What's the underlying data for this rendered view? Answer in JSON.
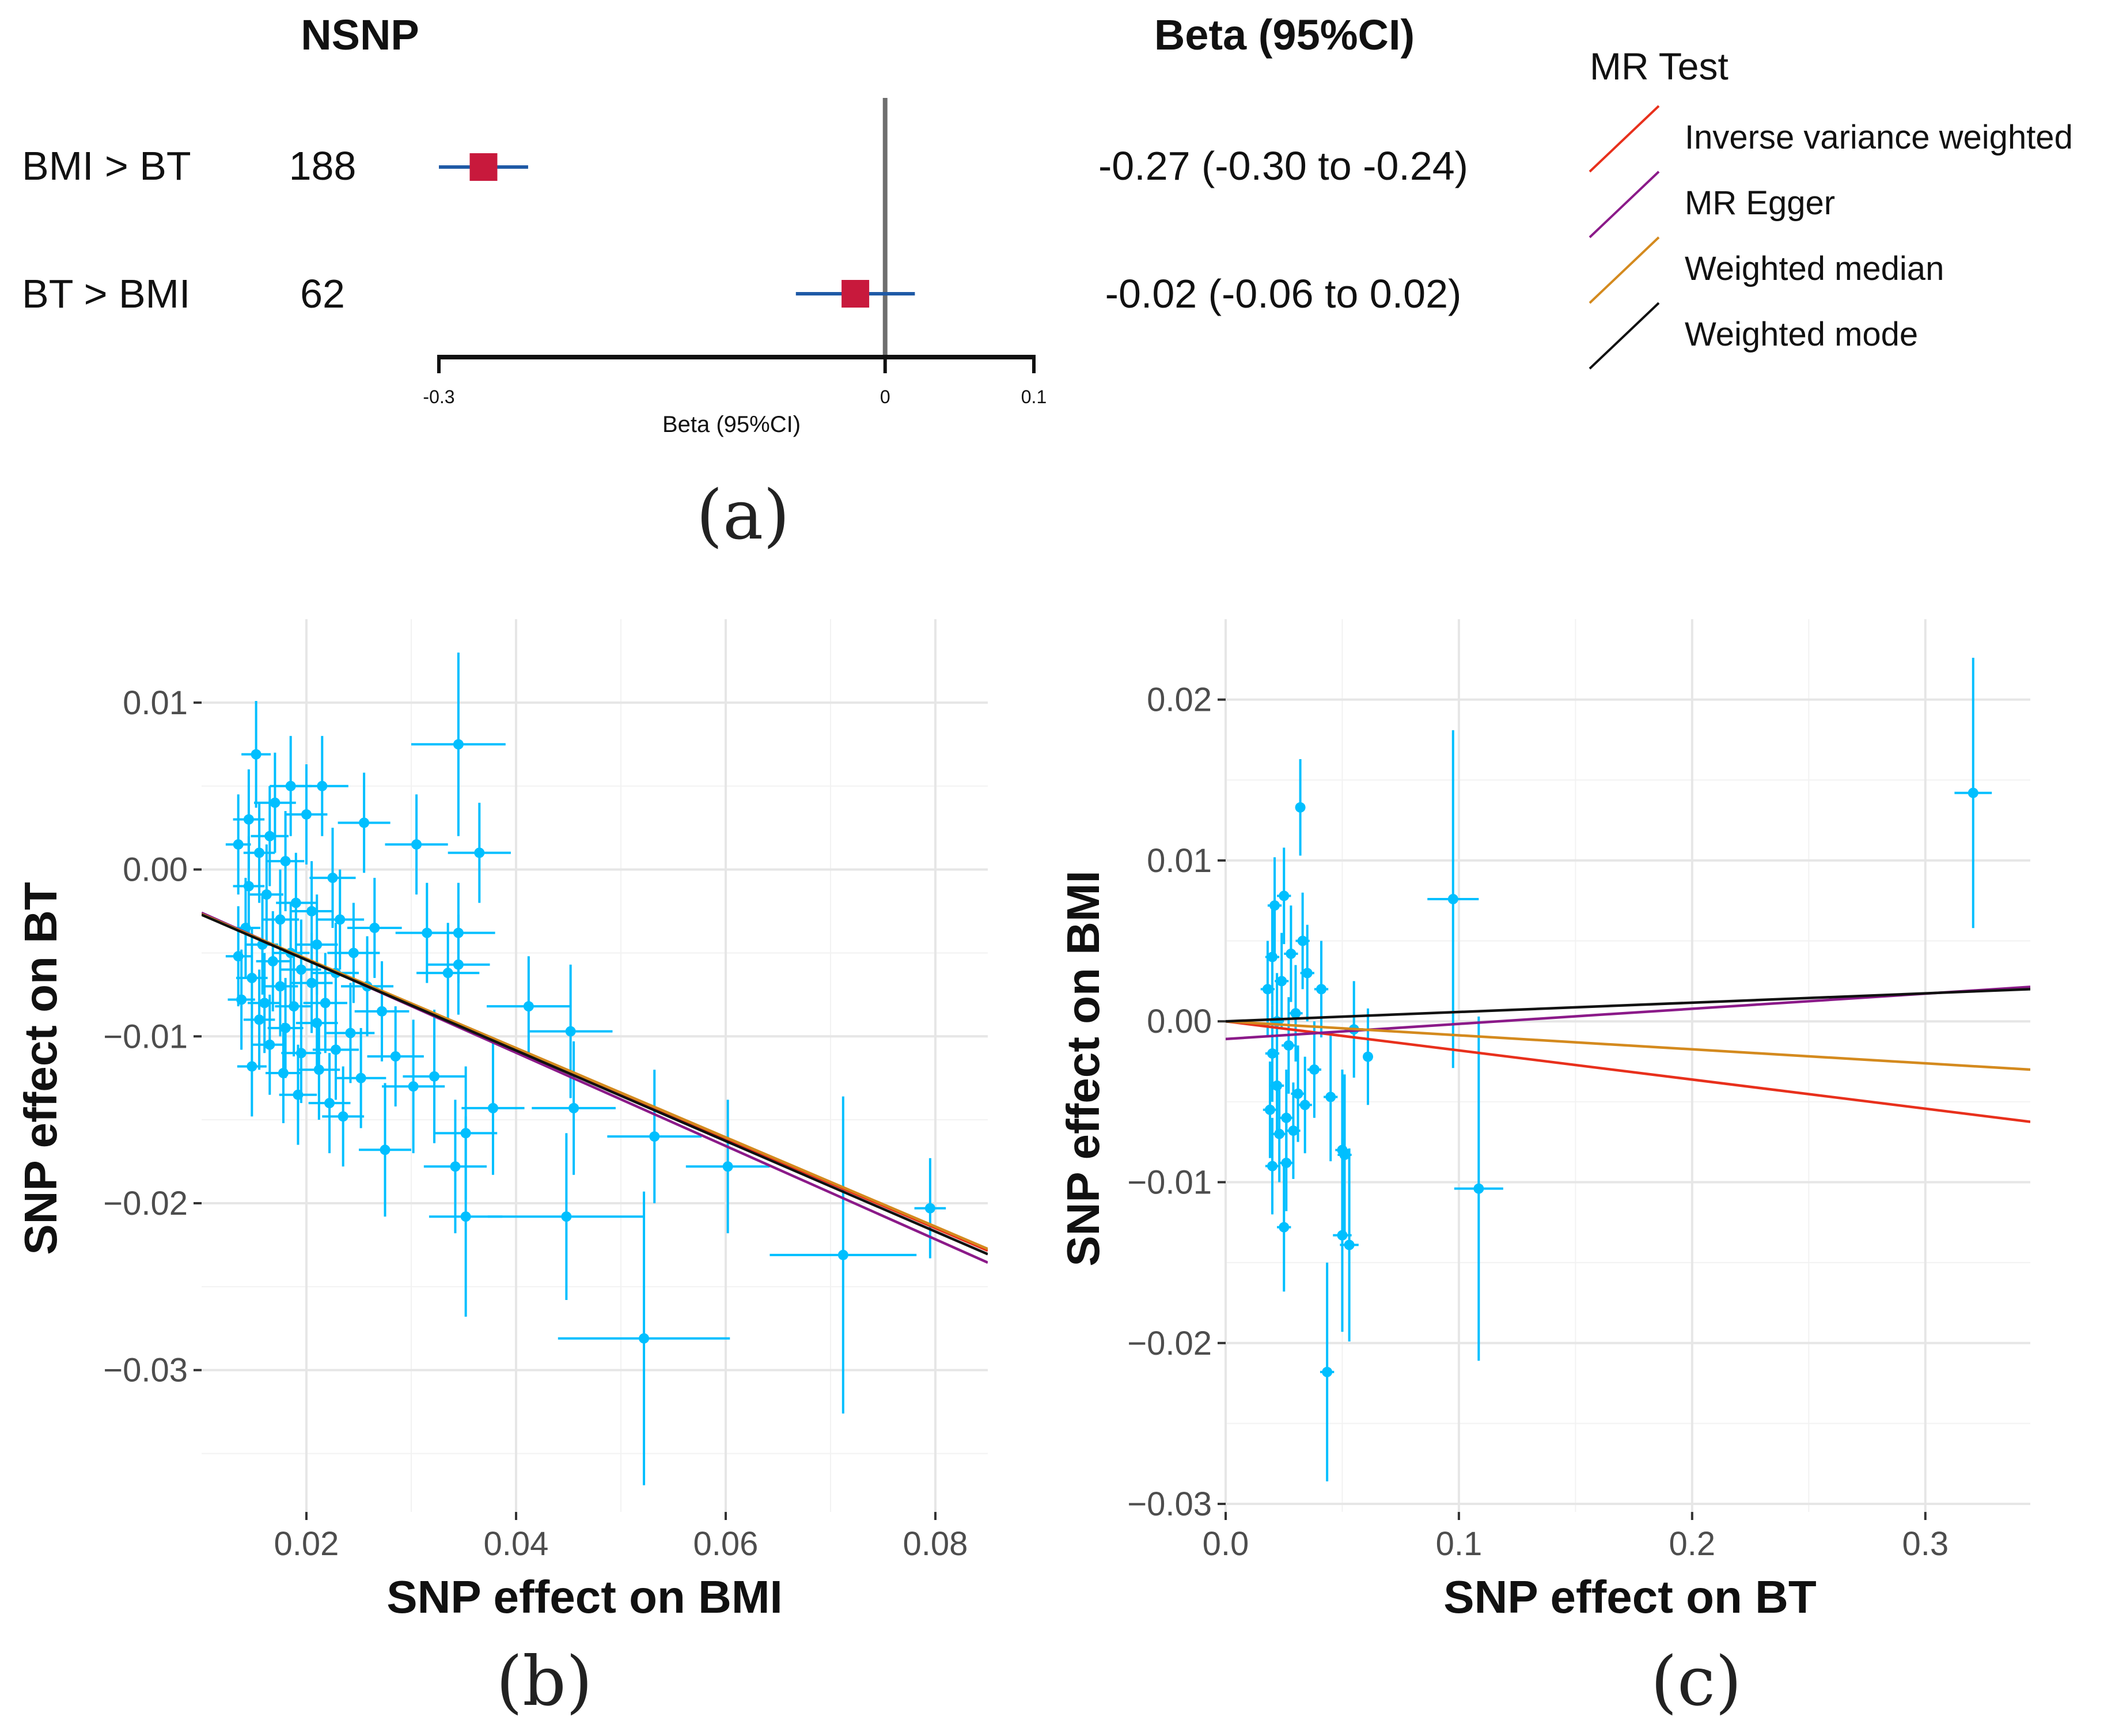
{
  "chart_data": [
    {
      "panel": "(a)",
      "type": "forest",
      "column_headers": {
        "nsnp": "NSNP",
        "estimate": "Beta (95%CI)"
      },
      "rows": [
        {
          "label": "BMI > BT",
          "nsnp": "188",
          "beta": -0.27,
          "lower": -0.3,
          "upper": -0.24,
          "ci_text": "-0.27 (-0.30 to -0.24)"
        },
        {
          "label": "BT > BMI",
          "nsnp": "62",
          "beta": -0.02,
          "lower": -0.06,
          "upper": 0.02,
          "ci_text": "-0.02 (-0.06 to 0.02)"
        }
      ],
      "xaxis": {
        "label": "Beta (95%CI)",
        "ticks": [
          "-0.3",
          "0",
          "0.1"
        ],
        "range": [
          -0.3,
          0.1
        ]
      },
      "point_color": "#c8193c",
      "ci_color": "#1f5aa6",
      "caption": "(a)"
    },
    {
      "panel": "(b)",
      "type": "scatter",
      "xlabel": "SNP effect on BMI",
      "ylabel": "SNP effect on BT",
      "xlim": [
        0.01,
        0.085
      ],
      "ylim": [
        -0.0385,
        0.015
      ],
      "xticks": [
        "0.02",
        "0.04",
        "0.06",
        "0.08"
      ],
      "yticks": [
        "0.01",
        "0.00",
        "−0.01",
        "−0.02",
        "−0.03"
      ],
      "point_color": "#00bfff",
      "points": [
        {
          "x": 0.0152,
          "y": 0.0069,
          "xe": 0.0014,
          "ye": 0.0032
        },
        {
          "x": 0.0345,
          "y": 0.0075,
          "xe": 0.0045,
          "ye": 0.0055
        },
        {
          "x": 0.0215,
          "y": 0.005,
          "xe": 0.0025,
          "ye": 0.003
        },
        {
          "x": 0.0185,
          "y": 0.005,
          "xe": 0.002,
          "ye": 0.003
        },
        {
          "x": 0.017,
          "y": 0.004,
          "xe": 0.002,
          "ye": 0.003
        },
        {
          "x": 0.0145,
          "y": 0.003,
          "xe": 0.0015,
          "ye": 0.003
        },
        {
          "x": 0.02,
          "y": 0.0033,
          "xe": 0.002,
          "ye": 0.003
        },
        {
          "x": 0.0165,
          "y": 0.002,
          "xe": 0.0018,
          "ye": 0.003
        },
        {
          "x": 0.0135,
          "y": 0.0015,
          "xe": 0.0012,
          "ye": 0.003
        },
        {
          "x": 0.0155,
          "y": 0.001,
          "xe": 0.0015,
          "ye": 0.003
        },
        {
          "x": 0.018,
          "y": 0.0005,
          "xe": 0.0018,
          "ye": 0.003
        },
        {
          "x": 0.0365,
          "y": 0.001,
          "xe": 0.003,
          "ye": 0.003
        },
        {
          "x": 0.0305,
          "y": 0.0015,
          "xe": 0.003,
          "ye": 0.003
        },
        {
          "x": 0.0255,
          "y": 0.0028,
          "xe": 0.0025,
          "ye": 0.003
        },
        {
          "x": 0.0225,
          "y": -0.0005,
          "xe": 0.0022,
          "ye": 0.003
        },
        {
          "x": 0.0145,
          "y": -0.001,
          "xe": 0.0015,
          "ye": 0.003
        },
        {
          "x": 0.0162,
          "y": -0.0015,
          "xe": 0.0016,
          "ye": 0.003
        },
        {
          "x": 0.019,
          "y": -0.002,
          "xe": 0.0019,
          "ye": 0.003
        },
        {
          "x": 0.0205,
          "y": -0.0025,
          "xe": 0.002,
          "ye": 0.003
        },
        {
          "x": 0.0175,
          "y": -0.003,
          "xe": 0.0018,
          "ye": 0.003
        },
        {
          "x": 0.0142,
          "y": -0.0035,
          "xe": 0.0014,
          "ye": 0.003
        },
        {
          "x": 0.0232,
          "y": -0.003,
          "xe": 0.0023,
          "ye": 0.003
        },
        {
          "x": 0.0265,
          "y": -0.0035,
          "xe": 0.0026,
          "ye": 0.003
        },
        {
          "x": 0.0315,
          "y": -0.0038,
          "xe": 0.003,
          "ye": 0.003
        },
        {
          "x": 0.0345,
          "y": -0.0038,
          "xe": 0.0035,
          "ye": 0.003
        },
        {
          "x": 0.0158,
          "y": -0.0045,
          "xe": 0.0015,
          "ye": 0.003
        },
        {
          "x": 0.0185,
          "y": -0.005,
          "xe": 0.0018,
          "ye": 0.003
        },
        {
          "x": 0.021,
          "y": -0.0045,
          "xe": 0.002,
          "ye": 0.003
        },
        {
          "x": 0.0245,
          "y": -0.005,
          "xe": 0.0025,
          "ye": 0.003
        },
        {
          "x": 0.0135,
          "y": -0.0052,
          "xe": 0.0012,
          "ye": 0.003
        },
        {
          "x": 0.0168,
          "y": -0.0055,
          "xe": 0.0016,
          "ye": 0.003
        },
        {
          "x": 0.0195,
          "y": -0.006,
          "xe": 0.0019,
          "ye": 0.003
        },
        {
          "x": 0.0228,
          "y": -0.0062,
          "xe": 0.0022,
          "ye": 0.003
        },
        {
          "x": 0.0148,
          "y": -0.0065,
          "xe": 0.0015,
          "ye": 0.003
        },
        {
          "x": 0.0175,
          "y": -0.007,
          "xe": 0.0017,
          "ye": 0.003
        },
        {
          "x": 0.0205,
          "y": -0.0068,
          "xe": 0.002,
          "ye": 0.003
        },
        {
          "x": 0.0258,
          "y": -0.007,
          "xe": 0.0025,
          "ye": 0.003
        },
        {
          "x": 0.0335,
          "y": -0.0062,
          "xe": 0.003,
          "ye": 0.003
        },
        {
          "x": 0.0345,
          "y": -0.0057,
          "xe": 0.003,
          "ye": 0.003
        },
        {
          "x": 0.0138,
          "y": -0.0078,
          "xe": 0.0013,
          "ye": 0.003
        },
        {
          "x": 0.016,
          "y": -0.008,
          "xe": 0.0016,
          "ye": 0.003
        },
        {
          "x": 0.0188,
          "y": -0.0082,
          "xe": 0.0018,
          "ye": 0.003
        },
        {
          "x": 0.0218,
          "y": -0.008,
          "xe": 0.0021,
          "ye": 0.003
        },
        {
          "x": 0.0272,
          "y": -0.0085,
          "xe": 0.0026,
          "ye": 0.003
        },
        {
          "x": 0.0412,
          "y": -0.0082,
          "xe": 0.004,
          "ye": 0.003
        },
        {
          "x": 0.0155,
          "y": -0.009,
          "xe": 0.0015,
          "ye": 0.003
        },
        {
          "x": 0.018,
          "y": -0.0095,
          "xe": 0.0017,
          "ye": 0.003
        },
        {
          "x": 0.021,
          "y": -0.0092,
          "xe": 0.002,
          "ye": 0.003
        },
        {
          "x": 0.0242,
          "y": -0.0098,
          "xe": 0.0023,
          "ye": 0.003
        },
        {
          "x": 0.0452,
          "y": -0.0097,
          "xe": 0.004,
          "ye": 0.004
        },
        {
          "x": 0.0165,
          "y": -0.0105,
          "xe": 0.0016,
          "ye": 0.003
        },
        {
          "x": 0.0195,
          "y": -0.011,
          "xe": 0.0019,
          "ye": 0.003
        },
        {
          "x": 0.0228,
          "y": -0.0108,
          "xe": 0.0022,
          "ye": 0.003
        },
        {
          "x": 0.0285,
          "y": -0.0112,
          "xe": 0.0027,
          "ye": 0.003
        },
        {
          "x": 0.0148,
          "y": -0.0118,
          "xe": 0.0014,
          "ye": 0.003
        },
        {
          "x": 0.0178,
          "y": -0.0122,
          "xe": 0.0017,
          "ye": 0.003
        },
        {
          "x": 0.0212,
          "y": -0.012,
          "xe": 0.002,
          "ye": 0.003
        },
        {
          "x": 0.0252,
          "y": -0.0125,
          "xe": 0.0024,
          "ye": 0.003
        },
        {
          "x": 0.0322,
          "y": -0.0124,
          "xe": 0.003,
          "ye": 0.004
        },
        {
          "x": 0.0302,
          "y": -0.013,
          "xe": 0.003,
          "ye": 0.004
        },
        {
          "x": 0.0192,
          "y": -0.0135,
          "xe": 0.0018,
          "ye": 0.003
        },
        {
          "x": 0.0222,
          "y": -0.014,
          "xe": 0.002,
          "ye": 0.003
        },
        {
          "x": 0.0378,
          "y": -0.0143,
          "xe": 0.003,
          "ye": 0.004
        },
        {
          "x": 0.0455,
          "y": -0.0143,
          "xe": 0.004,
          "ye": 0.004
        },
        {
          "x": 0.0235,
          "y": -0.0148,
          "xe": 0.002,
          "ye": 0.003
        },
        {
          "x": 0.0352,
          "y": -0.0158,
          "xe": 0.003,
          "ye": 0.004
        },
        {
          "x": 0.0532,
          "y": -0.016,
          "xe": 0.0045,
          "ye": 0.004
        },
        {
          "x": 0.0275,
          "y": -0.0168,
          "xe": 0.0025,
          "ye": 0.004
        },
        {
          "x": 0.0342,
          "y": -0.0178,
          "xe": 0.003,
          "ye": 0.004
        },
        {
          "x": 0.0602,
          "y": -0.0178,
          "xe": 0.004,
          "ye": 0.004
        },
        {
          "x": 0.0352,
          "y": -0.0208,
          "xe": 0.0035,
          "ye": 0.006
        },
        {
          "x": 0.0448,
          "y": -0.0208,
          "xe": 0.0075,
          "ye": 0.005
        },
        {
          "x": 0.0795,
          "y": -0.0203,
          "xe": 0.0015,
          "ye": 0.003
        },
        {
          "x": 0.0712,
          "y": -0.0231,
          "xe": 0.007,
          "ye": 0.0095
        },
        {
          "x": 0.0522,
          "y": -0.0281,
          "xe": 0.0082,
          "ye": 0.0088
        }
      ],
      "lines": [
        {
          "method": "Inverse variance weighted",
          "color": "#e8301c",
          "slope": -0.2687
        },
        {
          "method": "MR Egger",
          "color": "#8b1a89",
          "slope": -0.2795,
          "intercept": 0.0002
        },
        {
          "method": "Weighted median",
          "color": "#d48a1e",
          "slope": -0.2675
        },
        {
          "method": "Weighted mode",
          "color": "#111111",
          "slope": -0.2712
        }
      ],
      "caption": "(b)"
    },
    {
      "panel": "(c)",
      "type": "scatter",
      "xlabel": "SNP effect on BT",
      "ylabel": "SNP effect on BMI",
      "xlim": [
        0.0,
        0.345
      ],
      "ylim": [
        -0.0305,
        0.025
      ],
      "xticks": [
        "0.0",
        "0.1",
        "0.2",
        "0.3"
      ],
      "yticks": [
        "0.02",
        "0.01",
        "0.00",
        "−0.01",
        "−0.02",
        "−0.03"
      ],
      "point_color": "#00bfff",
      "points": [
        {
          "x": 0.032,
          "y": 0.0133,
          "xe": 0.002,
          "ye": 0.003
        },
        {
          "x": 0.0975,
          "y": 0.0076,
          "xe": 0.011,
          "ye": 0.0105
        },
        {
          "x": 0.3205,
          "y": 0.0142,
          "xe": 0.008,
          "ye": 0.0084
        },
        {
          "x": 0.1085,
          "y": -0.0104,
          "xe": 0.0105,
          "ye": 0.0107
        },
        {
          "x": 0.021,
          "y": 0.0072,
          "xe": 0.003,
          "ye": 0.003
        },
        {
          "x": 0.025,
          "y": 0.0078,
          "xe": 0.003,
          "ye": 0.003
        },
        {
          "x": 0.02,
          "y": 0.004,
          "xe": 0.003,
          "ye": 0.003
        },
        {
          "x": 0.028,
          "y": 0.0042,
          "xe": 0.003,
          "ye": 0.003
        },
        {
          "x": 0.033,
          "y": 0.005,
          "xe": 0.003,
          "ye": 0.003
        },
        {
          "x": 0.018,
          "y": 0.002,
          "xe": 0.003,
          "ye": 0.003
        },
        {
          "x": 0.024,
          "y": 0.0025,
          "xe": 0.003,
          "ye": 0.003
        },
        {
          "x": 0.035,
          "y": 0.003,
          "xe": 0.003,
          "ye": 0.003
        },
        {
          "x": 0.041,
          "y": 0.002,
          "xe": 0.003,
          "ye": 0.003
        },
        {
          "x": 0.022,
          "y": 0.0,
          "xe": 0.003,
          "ye": 0.003
        },
        {
          "x": 0.03,
          "y": 0.0005,
          "xe": 0.003,
          "ye": 0.003
        },
        {
          "x": 0.055,
          "y": -0.0005,
          "xe": 0.004,
          "ye": 0.003
        },
        {
          "x": 0.02,
          "y": -0.002,
          "xe": 0.003,
          "ye": 0.003
        },
        {
          "x": 0.027,
          "y": -0.0015,
          "xe": 0.003,
          "ye": 0.003
        },
        {
          "x": 0.038,
          "y": -0.003,
          "xe": 0.003,
          "ye": 0.003
        },
        {
          "x": 0.061,
          "y": -0.0022,
          "xe": 0.002,
          "ye": 0.003
        },
        {
          "x": 0.022,
          "y": -0.004,
          "xe": 0.003,
          "ye": 0.003
        },
        {
          "x": 0.031,
          "y": -0.0045,
          "xe": 0.003,
          "ye": 0.003
        },
        {
          "x": 0.045,
          "y": -0.0047,
          "xe": 0.003,
          "ye": 0.004
        },
        {
          "x": 0.019,
          "y": -0.0055,
          "xe": 0.003,
          "ye": 0.003
        },
        {
          "x": 0.026,
          "y": -0.006,
          "xe": 0.003,
          "ye": 0.003
        },
        {
          "x": 0.034,
          "y": -0.0052,
          "xe": 0.003,
          "ye": 0.003
        },
        {
          "x": 0.023,
          "y": -0.007,
          "xe": 0.003,
          "ye": 0.003
        },
        {
          "x": 0.029,
          "y": -0.0068,
          "xe": 0.003,
          "ye": 0.003
        },
        {
          "x": 0.05,
          "y": -0.008,
          "xe": 0.003,
          "ye": 0.005
        },
        {
          "x": 0.051,
          "y": -0.0083,
          "xe": 0.003,
          "ye": 0.005
        },
        {
          "x": 0.02,
          "y": -0.009,
          "xe": 0.003,
          "ye": 0.003
        },
        {
          "x": 0.026,
          "y": -0.0088,
          "xe": 0.003,
          "ye": 0.003
        },
        {
          "x": 0.025,
          "y": -0.0128,
          "xe": 0.003,
          "ye": 0.004
        },
        {
          "x": 0.05,
          "y": -0.0133,
          "xe": 0.004,
          "ye": 0.006
        },
        {
          "x": 0.053,
          "y": -0.0139,
          "xe": 0.004,
          "ye": 0.006
        },
        {
          "x": 0.0435,
          "y": -0.0218,
          "xe": 0.003,
          "ye": 0.0068
        }
      ],
      "lines": [
        {
          "method": "Inverse variance weighted",
          "color": "#e8301c",
          "slope": -0.0181
        },
        {
          "method": "MR Egger",
          "color": "#8b1a89",
          "slope": 0.0094,
          "intercept": -0.0011
        },
        {
          "method": "Weighted median",
          "color": "#d48a1e",
          "slope": -0.0087
        },
        {
          "method": "Weighted mode",
          "color": "#111111",
          "slope": 0.0058
        }
      ],
      "caption": "(c)"
    }
  ],
  "legend": {
    "title": "MR Test",
    "items": [
      {
        "label": "Inverse variance weighted",
        "color": "#e8301c"
      },
      {
        "label": "MR Egger",
        "color": "#8b1a89"
      },
      {
        "label": "Weighted median",
        "color": "#d48a1e"
      },
      {
        "label": "Weighted mode",
        "color": "#111111"
      }
    ]
  }
}
